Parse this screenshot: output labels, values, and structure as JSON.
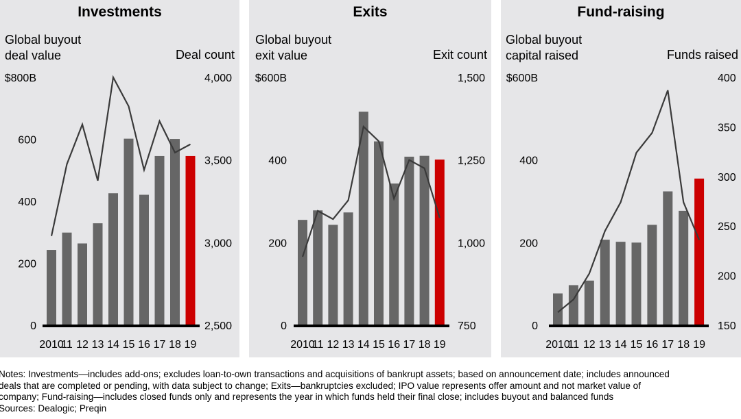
{
  "chart_data": [
    {
      "type": "bar+line",
      "title": "Investments",
      "left_axis_label": "Global buyout deal value",
      "right_axis_label": "Deal count",
      "categories": [
        "2010",
        "11",
        "12",
        "13",
        "14",
        "15",
        "16",
        "17",
        "18",
        "19"
      ],
      "left_ticks": [
        "0",
        "200",
        "400",
        "600",
        "$800B"
      ],
      "left_ylim": [
        0,
        800
      ],
      "right_ticks": [
        "2,500",
        "3,000",
        "3,500",
        "4,000"
      ],
      "right_ylim": [
        2500,
        4000
      ],
      "bar_values": [
        243,
        299,
        264,
        329,
        426,
        602,
        421,
        546,
        601,
        546
      ],
      "line_values": [
        3040,
        3475,
        3715,
        3375,
        4000,
        3825,
        3440,
        3735,
        3545,
        3595
      ],
      "bar_color": "#666666",
      "highlight_color": "#cc0000",
      "line_color": "#3a3a3a"
    },
    {
      "type": "bar+line",
      "title": "Exits",
      "left_axis_label": "Global buyout exit value",
      "right_axis_label": "Exit count",
      "categories": [
        "2010",
        "11",
        "12",
        "13",
        "14",
        "15",
        "16",
        "17",
        "18",
        "19"
      ],
      "left_ticks": [
        "0",
        "200",
        "400",
        "$600B"
      ],
      "left_ylim": [
        0,
        600
      ],
      "right_ticks": [
        "750",
        "1,000",
        "1,250",
        "1,500"
      ],
      "right_ylim": [
        750,
        1500
      ],
      "bar_values": [
        255,
        278,
        243,
        273,
        517,
        445,
        343,
        408,
        410,
        401
      ],
      "line_values": [
        957,
        1096,
        1071,
        1128,
        1351,
        1307,
        1133,
        1250,
        1225,
        1075
      ],
      "bar_color": "#666666",
      "highlight_color": "#cc0000",
      "line_color": "#3a3a3a"
    },
    {
      "type": "bar+line",
      "title": "Fund-raising",
      "left_axis_label": "Global buyout capital raised",
      "right_axis_label": "Funds raised",
      "categories": [
        "2010",
        "11",
        "12",
        "13",
        "14",
        "15",
        "16",
        "17",
        "18",
        "19"
      ],
      "left_ticks": [
        "0",
        "200",
        "400",
        "$600B"
      ],
      "left_ylim": [
        0,
        600
      ],
      "right_ticks": [
        "150",
        "200",
        "250",
        "300",
        "350",
        "400"
      ],
      "right_ylim": [
        150,
        400
      ],
      "bar_values": [
        77,
        97,
        108,
        207,
        202,
        200,
        243,
        324,
        277,
        355
      ],
      "line_values": [
        163,
        176,
        202,
        245,
        274,
        324,
        344,
        387,
        274,
        236
      ],
      "bar_color": "#666666",
      "highlight_color": "#cc0000",
      "line_color": "#3a3a3a"
    }
  ],
  "panels": [
    {
      "title": "Investments",
      "sub1": "Global buyout",
      "sub2": "deal value",
      "right": "Deal count"
    },
    {
      "title": "Exits",
      "sub1": "Global buyout",
      "sub2": "exit value",
      "right": "Exit count"
    },
    {
      "title": "Fund-raising",
      "sub1": "Global buyout",
      "sub2": "capital raised",
      "right": "Funds raised"
    }
  ],
  "notes": {
    "line1": "Notes: Investments—includes add-ons; excludes loan-to-own transactions and acquisitions of bankrupt assets; based on announcement date; includes announced",
    "line2": "deals that are completed or pending, with data subject to change; Exits—bankruptcies excluded; IPO value represents offer amount and not market value of",
    "line3": "company; Fund-raising—includes closed funds only and represents the year in which funds held their final close; includes buyout and balanced funds",
    "line4": "Sources: Dealogic; Preqin"
  }
}
